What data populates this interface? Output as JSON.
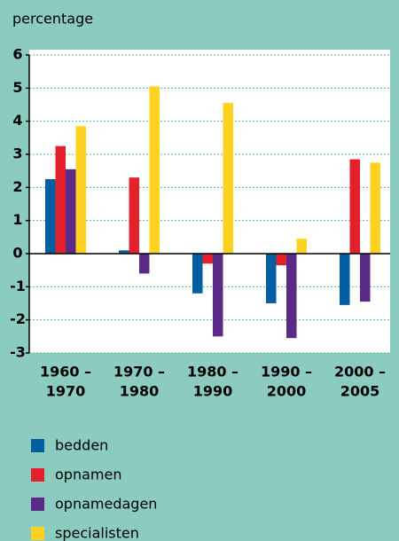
{
  "chart_data": {
    "type": "bar",
    "y_label": "percentage",
    "categories": [
      [
        "1960 –",
        "1970"
      ],
      [
        "1970 –",
        "1980"
      ],
      [
        "1980 –",
        "1990"
      ],
      [
        "1990 –",
        "2000"
      ],
      [
        "2000 –",
        "2005"
      ]
    ],
    "series": [
      {
        "name": "bedden",
        "color": "#005ea1",
        "values": [
          2.25,
          0.1,
          -1.2,
          -1.5,
          -1.55
        ]
      },
      {
        "name": "opnamen",
        "color": "#e4202a",
        "values": [
          3.25,
          2.3,
          -0.3,
          -0.35,
          2.85
        ]
      },
      {
        "name": "opnamedagen",
        "color": "#5b2a86",
        "values": [
          2.55,
          -0.6,
          -2.5,
          -2.55,
          -1.45
        ]
      },
      {
        "name": "specialisten",
        "color": "#ffd21f",
        "values": [
          3.85,
          5.05,
          4.55,
          0.45,
          2.75
        ]
      }
    ],
    "ylim": [
      -3,
      6
    ],
    "yticks": [
      -3,
      -2,
      -1,
      0,
      1,
      2,
      3,
      4,
      5,
      6
    ],
    "grid": true
  }
}
